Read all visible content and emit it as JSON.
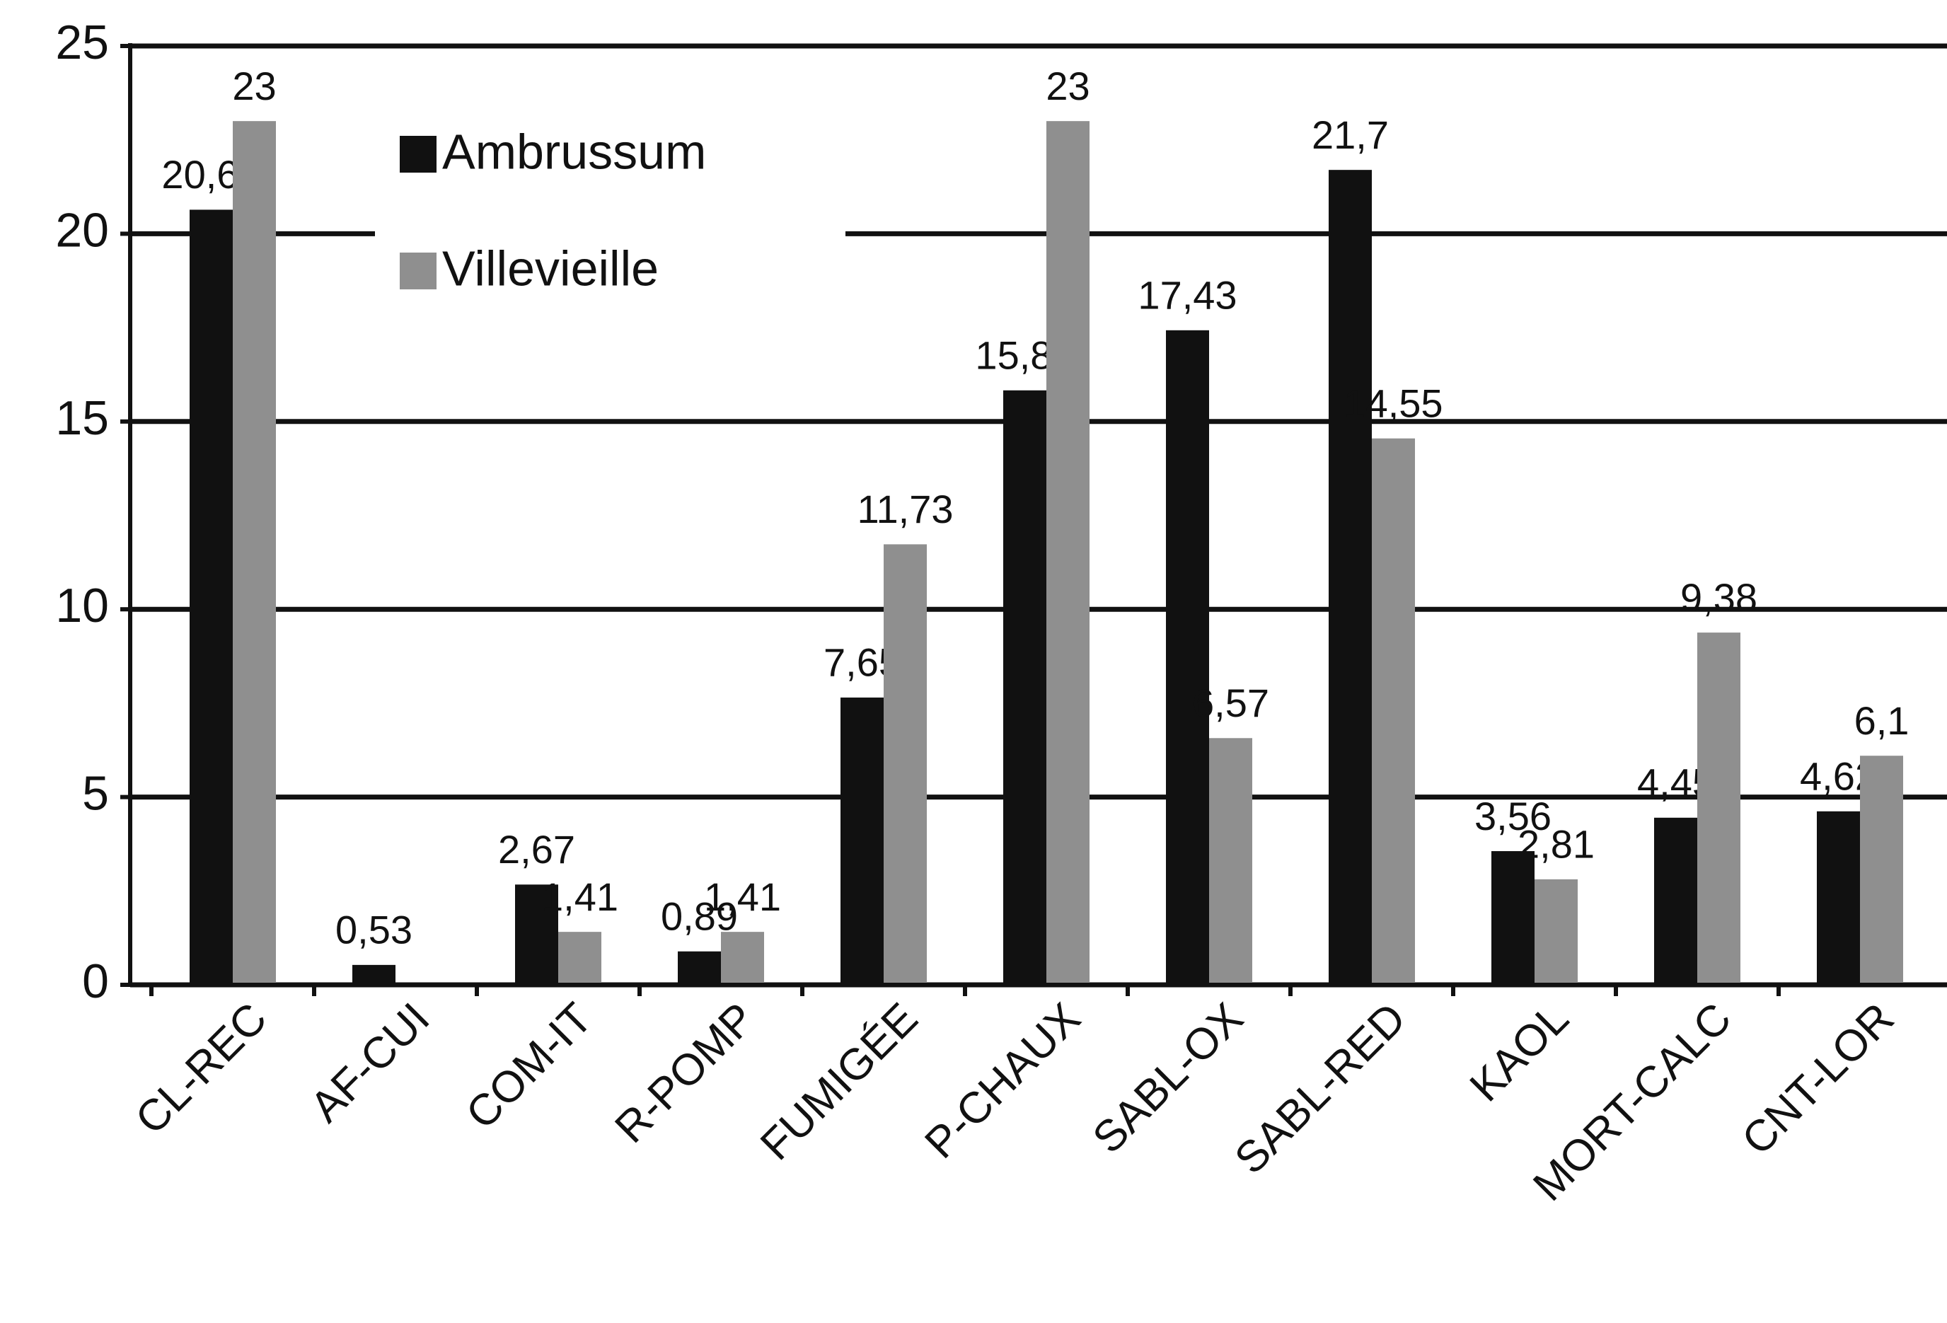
{
  "chart_data": {
    "type": "bar",
    "categories": [
      "CL-REC",
      "AF-CUI",
      "COM-IT",
      "R-POMP",
      "FUMIGÉE",
      "P-CHAUX",
      "SABL-OX",
      "SABL-RED",
      "KAOL",
      "MORT-CALC",
      "CNT-LOR"
    ],
    "series": [
      {
        "name": "Ambrussum",
        "color": "#111111",
        "values": [
          20.64,
          0.53,
          2.67,
          0.89,
          7.65,
          15.83,
          17.43,
          21.7,
          3.56,
          4.45,
          4.62
        ],
        "value_labels": [
          "20,64",
          "0,53",
          "2,67",
          "0,89",
          "7,65",
          "15,83",
          "17,43",
          "21,7",
          "3,56",
          "4,45",
          "4,62"
        ]
      },
      {
        "name": "Villevieille",
        "color": "#8f8f8f",
        "values": [
          23,
          null,
          1.41,
          1.41,
          11.73,
          23,
          6.57,
          14.55,
          2.81,
          9.38,
          6.1
        ],
        "value_labels": [
          "23",
          null,
          "1,41",
          "1,41",
          "11,73",
          "23",
          "6,57",
          "14,55",
          "2,81",
          "9,38",
          "6,1"
        ]
      }
    ],
    "ylim": [
      0,
      25
    ],
    "yticks": [
      0,
      5,
      10,
      15,
      20,
      25
    ],
    "grid": true,
    "legend": "upper-left"
  }
}
